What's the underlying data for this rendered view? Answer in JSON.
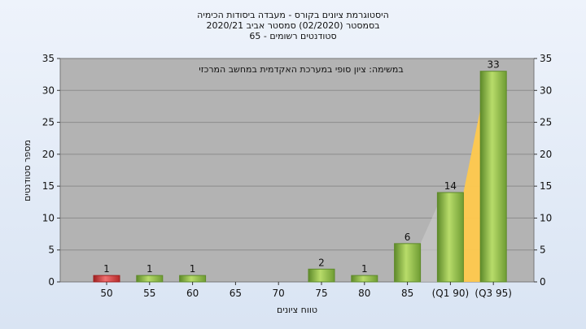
{
  "chart_data": {
    "type": "bar",
    "title_lines": [
      "היסטוגרמת ציונים בקורס - מעבדה ביסודות הכימיה",
      "בסמסטר  (02/2020)  סמסטר אביב 2020/21",
      "סטודנטים רשומים - 65"
    ],
    "annotation": "במשימה: ציון סופי במערכת האקדמית במחשב המרכזי",
    "xlabel": "טווח ציונים",
    "ylabel": "מספר סטודנטים",
    "categories": [
      "50",
      "55",
      "60",
      "65",
      "70",
      "75",
      "80",
      "85",
      "(Q1 90)",
      "(Q3 95)"
    ],
    "values": [
      1,
      1,
      1,
      0,
      0,
      2,
      1,
      6,
      14,
      33
    ],
    "value_labels": [
      "1",
      "1",
      "1",
      "",
      "",
      "2",
      "1",
      "6",
      "14",
      "33"
    ],
    "highlight_index": 0,
    "ylim": [
      0,
      35
    ],
    "yticks": [
      0,
      5,
      10,
      15,
      20,
      25,
      30,
      35
    ],
    "grid": true,
    "colors": {
      "bar": "#8fc04a",
      "bar_dark": "#5e8a2a",
      "highlight": "#d83a3a",
      "highlight_dark": "#9e1f1f",
      "quartile_band": "#ffc94d",
      "plot_bg": "#b3b3b3"
    }
  }
}
